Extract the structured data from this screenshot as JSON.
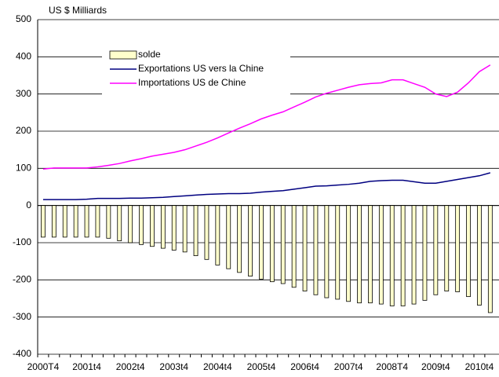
{
  "chart_data": {
    "type": "bar_line",
    "y_label": "US $ Milliards",
    "categories": [
      "2000T4",
      null,
      null,
      null,
      "2001t4",
      null,
      null,
      null,
      "2002t4",
      null,
      null,
      null,
      "2003t4",
      null,
      null,
      null,
      "2004t4",
      null,
      null,
      null,
      "2005t4",
      null,
      null,
      null,
      "2006t4",
      null,
      null,
      null,
      "2007t4",
      null,
      null,
      null,
      "2008T4",
      null,
      null,
      null,
      "2009t4",
      null,
      null,
      null,
      "2010t4",
      null
    ],
    "series": [
      {
        "name": "solde",
        "type": "bar",
        "color": "#ffffcc",
        "values": [
          -85,
          -85,
          -85,
          -85,
          -85,
          -85,
          -88,
          -95,
          -100,
          -105,
          -110,
          -115,
          -120,
          -125,
          -135,
          -145,
          -160,
          -170,
          -180,
          -190,
          -198,
          -205,
          -210,
          -220,
          -230,
          -240,
          -248,
          -252,
          -258,
          -262,
          -262,
          -265,
          -270,
          -270,
          -265,
          -255,
          -240,
          -230,
          -232,
          -245,
          -268,
          -288
        ]
      },
      {
        "name": "Exportations US vers la Chine",
        "type": "line",
        "color": "#000080",
        "values": [
          16,
          16,
          16,
          16,
          17,
          19,
          19,
          19,
          20,
          20,
          21,
          22,
          24,
          26,
          28,
          30,
          31,
          32,
          32,
          33,
          36,
          38,
          40,
          44,
          48,
          52,
          53,
          55,
          57,
          60,
          65,
          67,
          68,
          68,
          64,
          60,
          60,
          65,
          70,
          75,
          80,
          88
        ]
      },
      {
        "name": "Importations US de Chine",
        "type": "line",
        "color": "#ff00ff",
        "values": [
          98,
          101,
          101,
          101,
          101,
          104,
          108,
          113,
          120,
          126,
          133,
          138,
          143,
          150,
          160,
          170,
          182,
          195,
          208,
          220,
          233,
          243,
          252,
          265,
          278,
          292,
          302,
          310,
          318,
          325,
          328,
          330,
          338,
          338,
          328,
          318,
          300,
          293,
          305,
          330,
          360,
          378
        ]
      }
    ],
    "ylim": [
      -400,
      500
    ],
    "yticks": [
      -400,
      -300,
      -200,
      -100,
      0,
      100,
      200,
      300,
      400,
      500
    ],
    "grid": true
  }
}
